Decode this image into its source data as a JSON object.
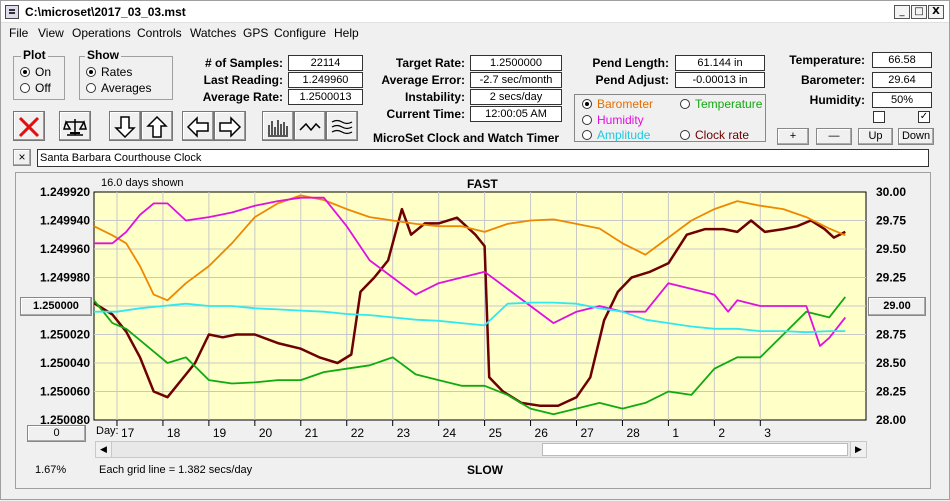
{
  "window": {
    "title": "C:\\microset\\2017_03_03.mst",
    "minimize": "_",
    "maximize": "□",
    "close": "X"
  },
  "menu": [
    "File",
    "View",
    "Operations",
    "Controls",
    "Watches",
    "GPS",
    "Configure",
    "Help"
  ],
  "plot_group": {
    "label": "Plot",
    "on": "On",
    "off": "Off",
    "selected": "on"
  },
  "show_group": {
    "label": "Show",
    "rates": "Rates",
    "averages": "Averages",
    "selected": "rates"
  },
  "stats": {
    "samples_label": "# of Samples:",
    "samples": "22114",
    "last_reading_label": "Last Reading:",
    "last_reading": "1.249960",
    "average_rate_label": "Average Rate:",
    "average_rate": "1.2500013",
    "target_rate_label": "Target Rate:",
    "target_rate": "1.2500000",
    "average_error_label": "Average Error:",
    "average_error": "-2.7 sec/month",
    "instability_label": "Instability:",
    "instability": "2 secs/day",
    "current_time_label": "Current Time:",
    "current_time": "12:00:05 AM",
    "pend_length_label": "Pend Length:",
    "pend_length": "61.144 in",
    "pend_adjust_label": "Pend Adjust:",
    "pend_adjust": "-0.00013 in",
    "temperature_label": "Temperature:",
    "temperature": "66.58",
    "barometer_label": "Barometer:",
    "barometer": "29.64",
    "humidity_label": "Humidity:",
    "humidity": "50%"
  },
  "app_name": "MicroSet Clock and Watch Timer",
  "series_select": {
    "barometer": "Barometer",
    "temperature": "Temperature",
    "humidity": "Humidity",
    "amplitude": "Amplitude",
    "clock_rate": "Clock rate",
    "selected": "barometer"
  },
  "small_buttons": {
    "plus": "+",
    "minus": "—",
    "up": "Up",
    "down": "Down"
  },
  "checkboxes": {
    "left_checked": false,
    "right_checked": true,
    "check_mark": "✓"
  },
  "watch_close": "×",
  "watch_name": "Santa Barbara Courthouse Clock",
  "colors": {
    "plot_bg": "#ffffc8",
    "grid": "#c8c8c8",
    "rate": "#6e0000",
    "barometer": "#ee8800",
    "temperature": "#10aa10",
    "humidity": "#e010e0",
    "amplitude": "#30e8f0"
  },
  "icons": [
    "close-x-icon",
    "balance-scale-icon",
    "arrow-down-icon",
    "arrow-up-icon",
    "arrow-left-icon",
    "arrow-right-icon",
    "bar-graph-icon",
    "wave-icon",
    "multi-wave-icon"
  ],
  "chart_data": {
    "type": "line",
    "title": "FAST",
    "bottom_label": "SLOW",
    "days_shown": "16.0 days shown",
    "grid_note": "Each grid line = 1.382 secs/day",
    "percent": "1.67%",
    "x_axis_prefix": "Day:",
    "x_ticks": [
      "17",
      "18",
      "19",
      "20",
      "21",
      "22",
      "23",
      "24",
      "25",
      "26",
      "27",
      "28",
      "1",
      "2",
      "3"
    ],
    "xlim": [
      16.5,
      33.3
    ],
    "left_axis": {
      "ticks": [
        "1.249920",
        "1.249940",
        "1.249960",
        "1.249980",
        "1.250000",
        "1.250020",
        "1.250040",
        "1.250060",
        "1.250080"
      ],
      "ylim": [
        1.24992,
        1.25008
      ],
      "center_button": "1.250000",
      "bottom_button": "0"
    },
    "right_axis": {
      "ticks": [
        "30.00",
        "29.75",
        "29.50",
        "29.25",
        "29.00",
        "28.75",
        "28.50",
        "28.25",
        "28.00"
      ],
      "ylim": [
        28.0,
        30.0
      ],
      "center_button": "29.00"
    },
    "grid": true,
    "series": [
      {
        "key": "rate",
        "axis": "left",
        "x": [
          16.5,
          16.9,
          17.2,
          17.5,
          17.8,
          18.1,
          18.4,
          18.7,
          19.0,
          19.3,
          19.6,
          20.0,
          20.5,
          21.0,
          21.4,
          21.8,
          22.1,
          22.3,
          22.6,
          22.9,
          23.2,
          23.4,
          23.7,
          24.0,
          24.4,
          24.8,
          25.0,
          25.1,
          25.4,
          25.8,
          26.2,
          26.6,
          27.0,
          27.3,
          27.6,
          27.9,
          28.2,
          28.6,
          29.0,
          29.4,
          29.8,
          30.2,
          30.5,
          30.8,
          31.1,
          31.5,
          31.8,
          32.1,
          32.4,
          32.6,
          32.85
        ],
        "y": [
          1.249998,
          1.250006,
          1.250018,
          1.250036,
          1.25006,
          1.250064,
          1.250052,
          1.25004,
          1.25002,
          1.250022,
          1.25002,
          1.25002,
          1.250026,
          1.25003,
          1.250036,
          1.25004,
          1.250034,
          1.24999,
          1.24998,
          1.249968,
          1.249932,
          1.24995,
          1.249942,
          1.249942,
          1.249938,
          1.24995,
          1.249958,
          1.25005,
          1.25006,
          1.250068,
          1.25007,
          1.25007,
          1.250064,
          1.25005,
          1.25001,
          1.24999,
          1.24998,
          1.249976,
          1.24997,
          1.24995,
          1.249946,
          1.249946,
          1.249948,
          1.24994,
          1.249948,
          1.249946,
          1.249944,
          1.24994,
          1.249946,
          1.249952,
          1.249948
        ]
      },
      {
        "key": "barometer",
        "axis": "right",
        "x": [
          16.5,
          16.9,
          17.2,
          17.5,
          17.8,
          18.1,
          18.5,
          19.0,
          19.5,
          20.0,
          20.5,
          21.0,
          21.5,
          22.0,
          22.5,
          23.0,
          23.5,
          24.0,
          24.5,
          25.0,
          25.5,
          26.0,
          26.5,
          27.0,
          27.5,
          28.0,
          28.5,
          29.0,
          29.5,
          30.0,
          30.5,
          31.0,
          31.5,
          32.0,
          32.5,
          32.85
        ],
        "y": [
          29.7,
          29.62,
          29.55,
          29.35,
          29.1,
          29.05,
          29.2,
          29.35,
          29.55,
          29.78,
          29.9,
          29.97,
          29.93,
          29.85,
          29.78,
          29.75,
          29.72,
          29.7,
          29.7,
          29.65,
          29.72,
          29.75,
          29.76,
          29.72,
          29.68,
          29.55,
          29.45,
          29.6,
          29.75,
          29.85,
          29.92,
          29.88,
          29.85,
          29.78,
          29.68,
          29.62
        ]
      },
      {
        "key": "temperature",
        "axis": "right",
        "x": [
          16.5,
          16.9,
          17.2,
          17.5,
          17.8,
          18.1,
          18.5,
          19.0,
          19.5,
          20.0,
          20.5,
          21.0,
          21.5,
          22.0,
          22.5,
          23.0,
          23.5,
          24.0,
          24.5,
          25.0,
          25.5,
          26.0,
          26.5,
          27.0,
          27.5,
          28.0,
          28.5,
          29.0,
          29.5,
          30.0,
          30.5,
          31.0,
          31.5,
          32.0,
          32.5,
          32.85
        ],
        "y": [
          29.05,
          28.85,
          28.8,
          28.7,
          28.6,
          28.5,
          28.55,
          28.35,
          28.32,
          28.33,
          28.35,
          28.35,
          28.42,
          28.45,
          28.48,
          28.55,
          28.4,
          28.35,
          28.3,
          28.3,
          28.22,
          28.1,
          28.05,
          28.1,
          28.15,
          28.1,
          28.15,
          28.25,
          28.22,
          28.45,
          28.55,
          28.55,
          28.75,
          28.95,
          28.9,
          29.08
        ]
      },
      {
        "key": "humidity",
        "axis": "right",
        "x": [
          16.5,
          16.9,
          17.2,
          17.5,
          17.8,
          18.1,
          18.5,
          19.0,
          19.5,
          20.0,
          20.5,
          21.0,
          21.5,
          22.0,
          22.5,
          23.0,
          23.5,
          24.0,
          24.5,
          25.0,
          25.5,
          26.0,
          26.5,
          27.0,
          27.5,
          28.0,
          28.5,
          29.0,
          29.5,
          30.0,
          30.3,
          30.5,
          31.0,
          31.5,
          32.0,
          32.3,
          32.5,
          32.85
        ],
        "y": [
          29.55,
          29.55,
          29.65,
          29.8,
          29.9,
          29.9,
          29.75,
          29.78,
          29.82,
          29.88,
          29.92,
          29.95,
          29.95,
          29.7,
          29.4,
          29.25,
          29.1,
          29.2,
          29.25,
          29.3,
          29.15,
          29.0,
          28.85,
          28.95,
          29.0,
          28.95,
          28.95,
          29.2,
          29.15,
          29.1,
          28.95,
          29.05,
          29.0,
          29.0,
          29.0,
          28.65,
          28.72,
          28.9
        ]
      },
      {
        "key": "amplitude",
        "axis": "right",
        "x": [
          16.5,
          17.0,
          17.5,
          18.0,
          18.5,
          19.0,
          19.5,
          20.0,
          20.5,
          21.0,
          21.5,
          22.0,
          22.5,
          23.0,
          23.5,
          24.0,
          24.5,
          25.0,
          25.5,
          26.0,
          26.5,
          27.0,
          27.5,
          28.0,
          28.5,
          29.0,
          29.5,
          30.0,
          30.5,
          31.0,
          31.5,
          32.0,
          32.5,
          32.85
        ],
        "y": [
          28.95,
          28.95,
          28.98,
          29.0,
          29.02,
          29.0,
          29.0,
          28.98,
          28.97,
          28.96,
          28.95,
          28.93,
          28.92,
          28.9,
          28.88,
          28.87,
          28.85,
          28.83,
          29.02,
          29.03,
          29.03,
          29.02,
          28.98,
          28.95,
          28.88,
          28.85,
          28.82,
          28.8,
          28.8,
          28.78,
          28.78,
          28.77,
          28.78,
          28.78
        ]
      }
    ]
  }
}
